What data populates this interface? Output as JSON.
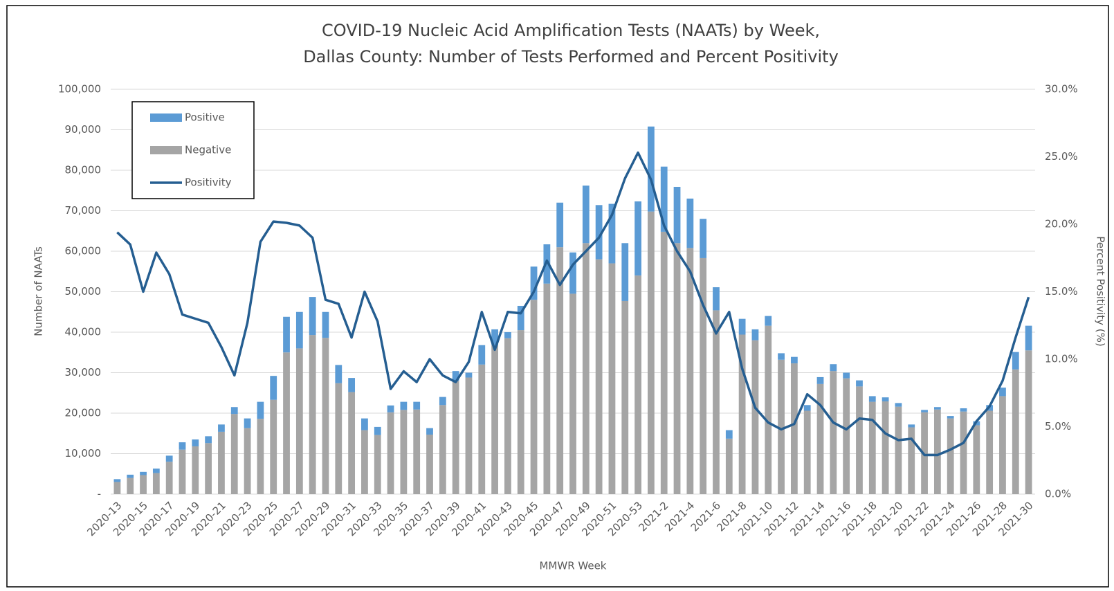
{
  "chart_data": {
    "type": "bar",
    "title": [
      "COVID-19 Nucleic Acid Amplification Tests (NAATs) by Week,",
      "Dallas County: Number of Tests Performed and Percent Positivity"
    ],
    "xlabel": "MMWR Week",
    "ylabel": "Number  of NAATs",
    "y2label": "Percent Positivity (%)",
    "categories": [
      "2020-13",
      null,
      "2020-15",
      null,
      "2020-17",
      null,
      "2020-19",
      null,
      "2020-21",
      null,
      "2020-23",
      null,
      "2020-25",
      null,
      "2020-27",
      null,
      "2020-29",
      null,
      "2020-31",
      null,
      "2020-33",
      null,
      "2020-35",
      null,
      "2020-37",
      null,
      "2020-39",
      null,
      "2020-41",
      null,
      "2020-43",
      null,
      "2020-45",
      null,
      "2020-47",
      null,
      "2020-49",
      null,
      "2020-51",
      null,
      "2020-53",
      null,
      "2021-2",
      null,
      "2021-4",
      null,
      "2021-6",
      null,
      "2021-8",
      null,
      "2021-10",
      null,
      "2021-12",
      null,
      "2021-14",
      null,
      "2021-16",
      null,
      "2021-18",
      null,
      "2021-20",
      null,
      "2021-22",
      null,
      "2021-24",
      null,
      "2021-26",
      null,
      "2021-28",
      null,
      "2021-30"
    ],
    "series": [
      {
        "name": "Positive",
        "color": "#5b9bd5",
        "type": "bar",
        "values": [
          700,
          800,
          800,
          1100,
          1500,
          1800,
          1700,
          1700,
          1800,
          1700,
          2400,
          4200,
          5900,
          8800,
          9000,
          9400,
          6400,
          4500,
          3500,
          2900,
          2000,
          1700,
          2000,
          1900,
          1600,
          2000,
          2400,
          1200,
          4800,
          3900,
          1500,
          6000,
          8200,
          9700,
          11000,
          10200,
          14200,
          13400,
          14700,
          14300,
          18300,
          21000,
          16100,
          13900,
          12200,
          9700,
          5700,
          2100,
          3900,
          2700,
          2400,
          1600,
          1600,
          1400,
          1700,
          1700,
          1400,
          1500,
          1400,
          1000,
          900,
          700,
          600,
          600,
          600,
          800,
          1000,
          1400,
          2100,
          4300,
          6100
        ]
      },
      {
        "name": "Negative",
        "color": "#a5a5a5",
        "type": "bar",
        "values": [
          3000,
          4000,
          4700,
          5200,
          8000,
          11000,
          11800,
          12600,
          15400,
          19800,
          16300,
          18600,
          23300,
          35000,
          36000,
          39300,
          38600,
          27400,
          25200,
          15800,
          14600,
          20200,
          20800,
          20900,
          14700,
          22000,
          28000,
          28800,
          32000,
          36800,
          38500,
          40500,
          48000,
          52000,
          61000,
          49500,
          62000,
          58000,
          57000,
          47700,
          54000,
          69800,
          64800,
          62000,
          60800,
          58300,
          45400,
          13700,
          39400,
          38000,
          41600,
          33200,
          32300,
          20600,
          27200,
          30400,
          28600,
          26600,
          22800,
          22900,
          21600,
          16500,
          20200,
          20900,
          18700,
          20400,
          17000,
          20600,
          24200,
          30800,
          35500
        ]
      },
      {
        "name": "Positivity",
        "color": "#255e91",
        "type": "line",
        "axis": "y2",
        "values": [
          19.4,
          18.5,
          15.0,
          17.9,
          16.3,
          13.3,
          13.0,
          12.7,
          10.9,
          8.8,
          12.7,
          18.7,
          20.2,
          20.1,
          19.9,
          19.0,
          14.4,
          14.1,
          11.6,
          15.0,
          12.8,
          7.8,
          9.1,
          8.3,
          10.0,
          8.8,
          8.3,
          9.8,
          13.5,
          10.7,
          13.5,
          13.4,
          15.0,
          17.3,
          15.5,
          17.0,
          18.0,
          19.0,
          20.7,
          23.4,
          25.3,
          23.3,
          19.9,
          18.0,
          16.5,
          14.0,
          11.9,
          13.5,
          9.3,
          6.4,
          5.3,
          4.8,
          5.2,
          7.4,
          6.6,
          5.3,
          4.8,
          5.6,
          5.5,
          4.5,
          4.0,
          4.1,
          2.9,
          2.9,
          3.3,
          3.8,
          5.4,
          6.5,
          8.4,
          11.6,
          14.6
        ]
      }
    ],
    "ylim": [
      0,
      100000
    ],
    "yticks": [
      {
        "value": 0,
        "label": "-"
      },
      {
        "value": 10000,
        "label": "10,000"
      },
      {
        "value": 20000,
        "label": "20,000"
      },
      {
        "value": 30000,
        "label": "30,000"
      },
      {
        "value": 40000,
        "label": "40,000"
      },
      {
        "value": 50000,
        "label": "50,000"
      },
      {
        "value": 60000,
        "label": "60,000"
      },
      {
        "value": 70000,
        "label": "70,000"
      },
      {
        "value": 80000,
        "label": "80,000"
      },
      {
        "value": 90000,
        "label": "90,000"
      },
      {
        "value": 100000,
        "label": "100,000"
      }
    ],
    "y2lim": [
      0,
      30
    ],
    "y2ticks": [
      {
        "value": 0,
        "label": "0.0%"
      },
      {
        "value": 5,
        "label": "5.0%"
      },
      {
        "value": 10,
        "label": "10.0%"
      },
      {
        "value": 15,
        "label": "15.0%"
      },
      {
        "value": 20,
        "label": "20.0%"
      },
      {
        "value": 25,
        "label": "25.0%"
      },
      {
        "value": 30,
        "label": "30.0%"
      }
    ],
    "grid": true,
    "legend": "upper left"
  }
}
